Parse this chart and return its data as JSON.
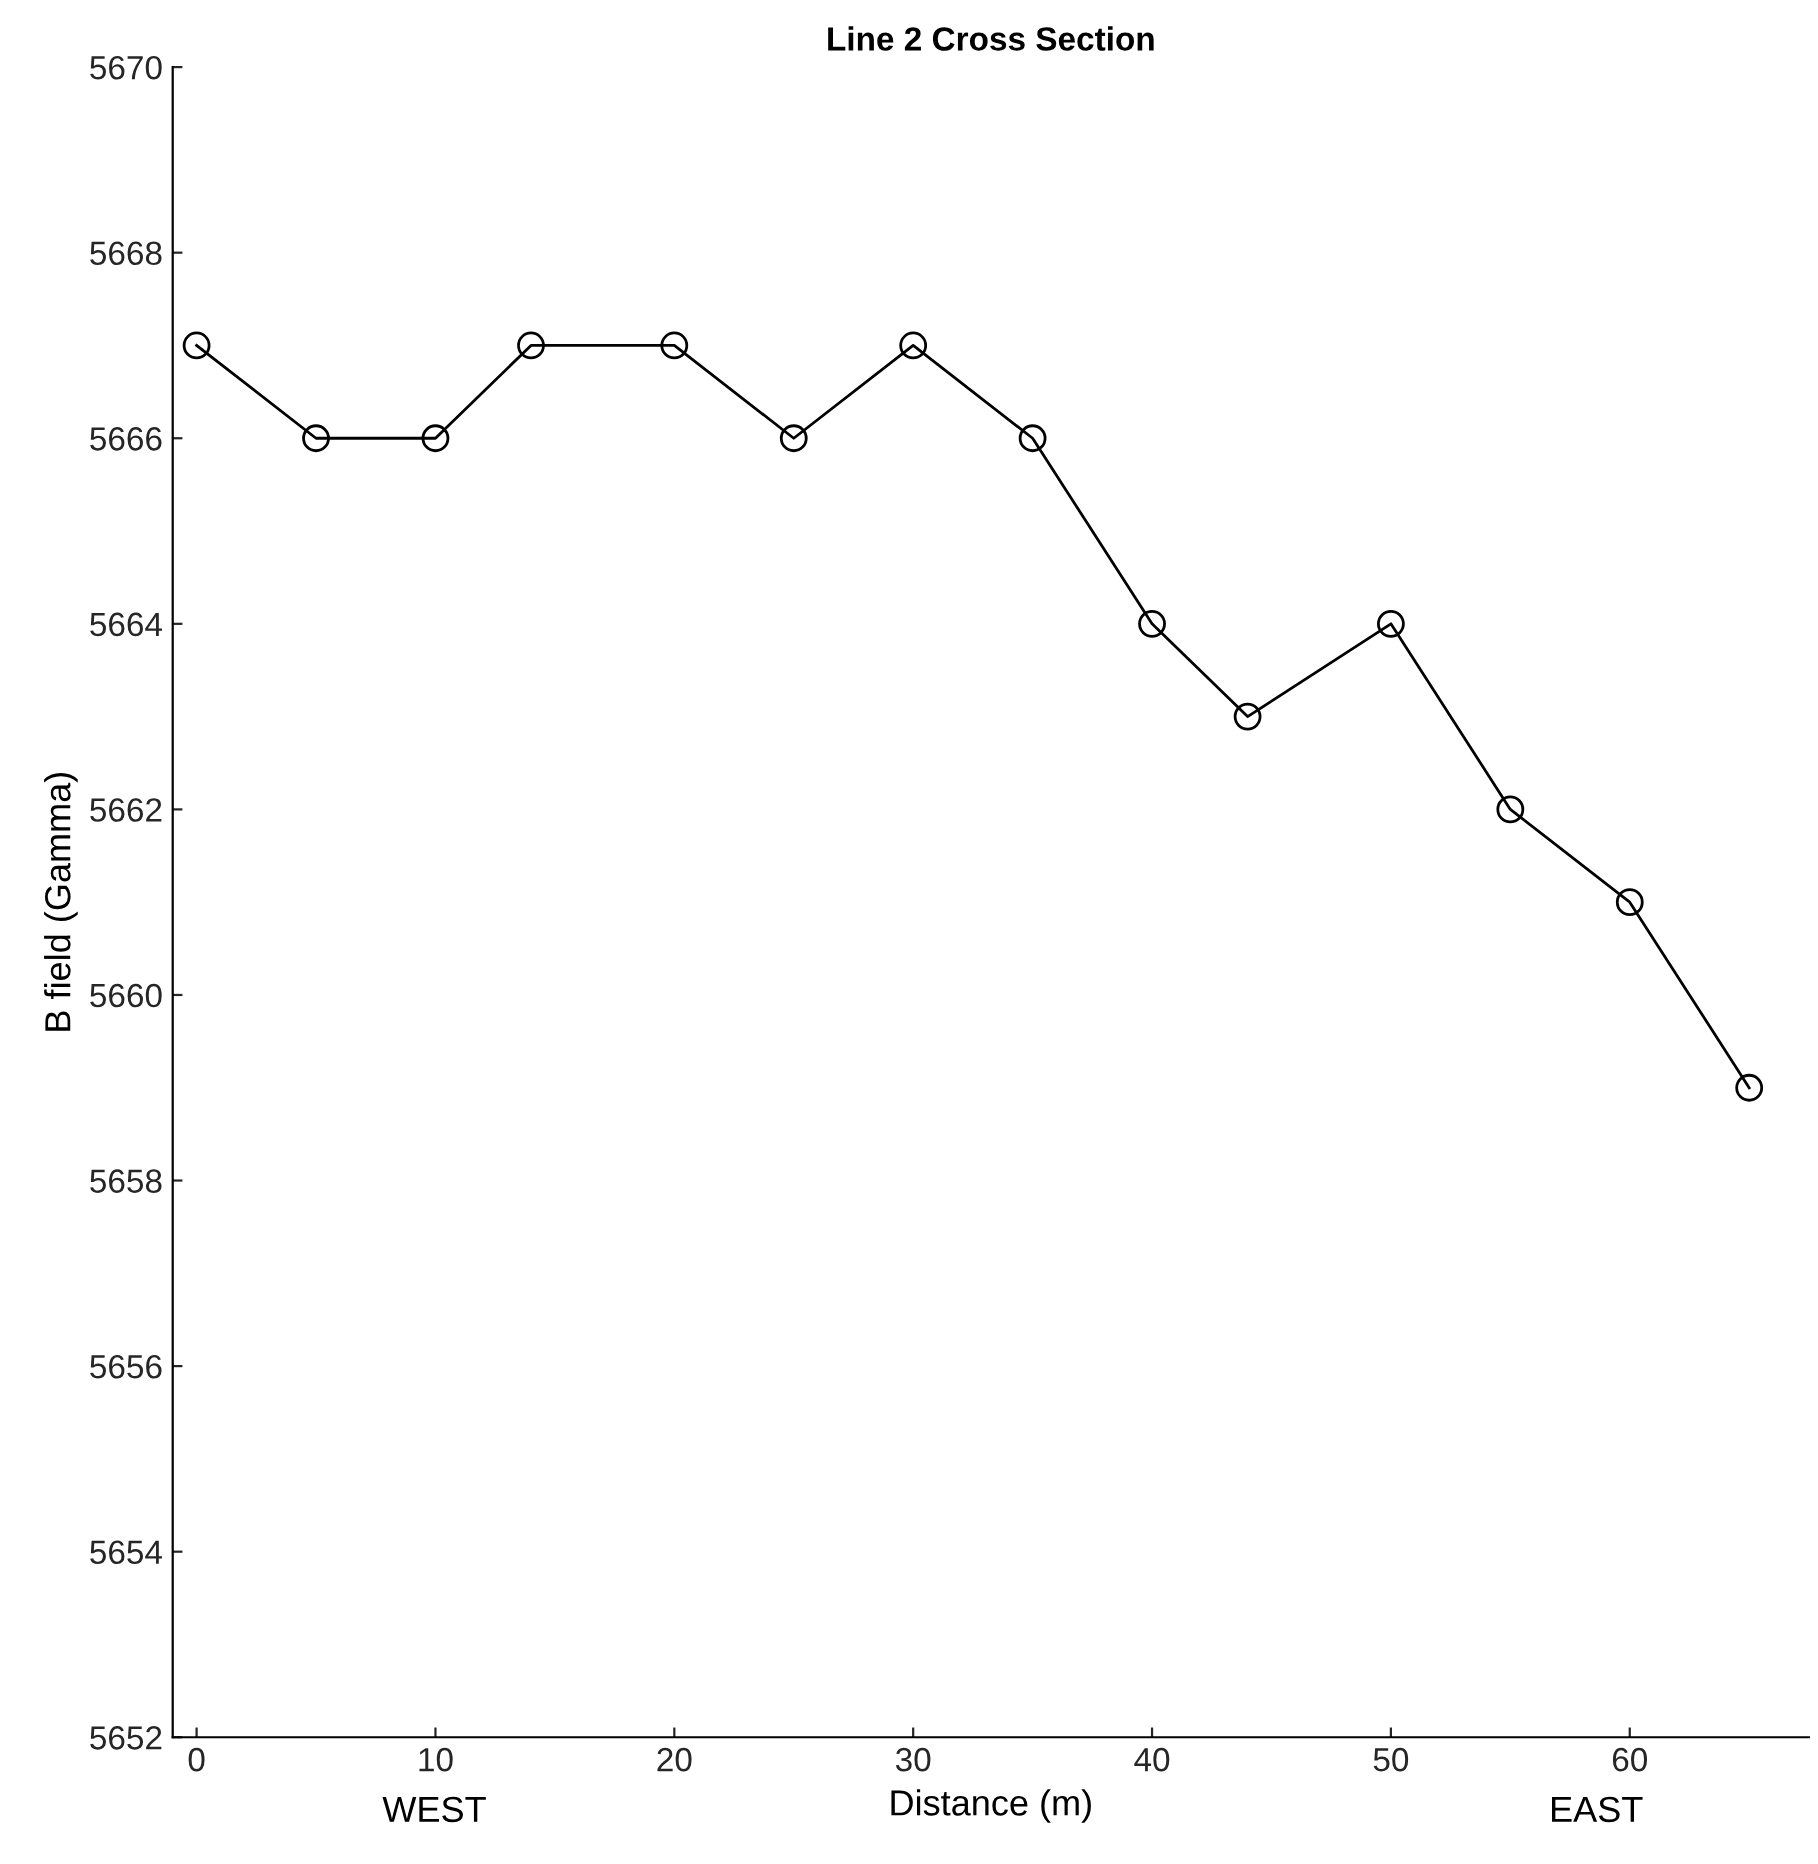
{
  "chart_data": {
    "type": "line",
    "title": "Line 2 Cross Section",
    "xlabel": "Distance (m)",
    "ylabel": "B field (Gamma)",
    "annotations": [
      "WEST",
      "EAST"
    ],
    "x": [
      0,
      5,
      10,
      14,
      20,
      25,
      30,
      35,
      40,
      44,
      50,
      55,
      60,
      65
    ],
    "series": [
      {
        "color": "#000000",
        "values": [
          5667,
          5666,
          5666,
          5667,
          5667,
          5666,
          5667,
          5666,
          5664,
          5663,
          5664,
          5662,
          5661,
          5659
        ]
      }
    ],
    "xlim": [
      -1,
      67.5
    ],
    "xticks": [
      0,
      10,
      20,
      30,
      40,
      50,
      60
    ],
    "ylim": [
      5652,
      5670
    ],
    "yticks": [
      5652,
      5654,
      5656,
      5658,
      5660,
      5662,
      5664,
      5666,
      5668,
      5670
    ],
    "grid": false,
    "legend": false,
    "marker": "circle",
    "line_style": "solid"
  }
}
